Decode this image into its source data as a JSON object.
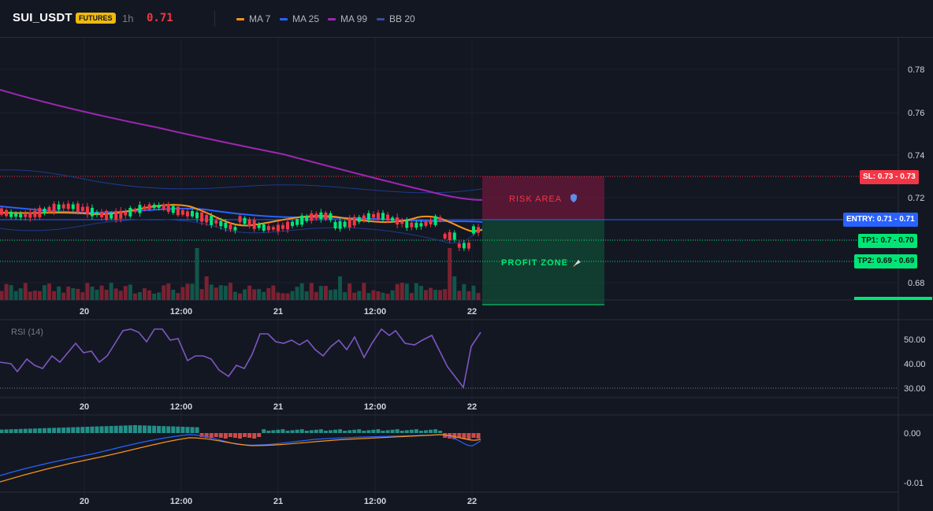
{
  "header": {
    "symbol": "SUI_USDT",
    "badge": "FUTURES",
    "interval": "1h",
    "price": "0.71",
    "indicators": [
      {
        "label": "MA 7",
        "color": "#f7931a"
      },
      {
        "label": "MA 25",
        "color": "#2962ff"
      },
      {
        "label": "MA 99",
        "color": "#9c27b0"
      },
      {
        "label": "BB 20",
        "color": "#1e3a8a"
      }
    ]
  },
  "price_axis": {
    "ticks": [
      "0.78",
      "0.76",
      "0.74",
      "0.72",
      "0.68"
    ]
  },
  "time_axis": {
    "ticks": [
      "20",
      "12:00",
      "21",
      "12:00",
      "22"
    ]
  },
  "zones": {
    "risk_label": "RISK AREA",
    "profit_label": "PROFIT ZONE"
  },
  "price_tags": {
    "sl": "SL: 0.73 - 0.73",
    "entry": "ENTRY: 0.71 - 0.71",
    "tp1": "TP1: 0.7 - 0.70",
    "tp2": "TP2: 0.69 - 0.69"
  },
  "rsi": {
    "label": "RSI (14)",
    "ticks": [
      "50.00",
      "40.00",
      "30.00"
    ]
  },
  "macd": {
    "ticks": [
      "0.00",
      "-0.01"
    ]
  },
  "colors": {
    "up": "#00e676",
    "down": "#f23645",
    "background": "#131722"
  }
}
